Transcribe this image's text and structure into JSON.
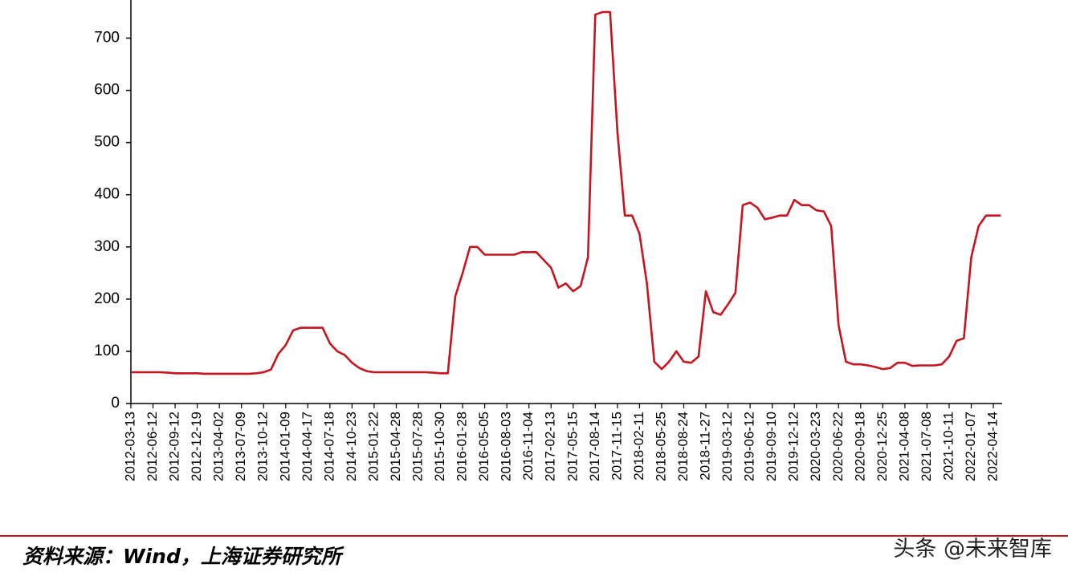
{
  "chart_data": {
    "type": "line",
    "categories": [
      "2012-03-13",
      null,
      null,
      "2012-06-12",
      null,
      null,
      "2012-09-12",
      null,
      null,
      "2012-12-19",
      null,
      null,
      "2013-04-02",
      null,
      null,
      "2013-07-09",
      null,
      null,
      "2013-10-12",
      null,
      null,
      "2014-01-09",
      null,
      null,
      "2014-04-17",
      null,
      null,
      "2014-07-18",
      null,
      null,
      "2014-10-23",
      null,
      null,
      "2015-01-22",
      null,
      null,
      "2015-04-28",
      null,
      null,
      "2015-07-28",
      null,
      null,
      "2015-10-30",
      null,
      null,
      "2016-01-28",
      null,
      null,
      "2016-05-05",
      null,
      null,
      "2016-08-03",
      null,
      null,
      "2016-11-04",
      null,
      null,
      "2017-02-13",
      null,
      null,
      "2017-05-15",
      null,
      null,
      "2017-08-14",
      null,
      null,
      "2017-11-15",
      null,
      null,
      "2018-02-11",
      null,
      null,
      "2018-05-25",
      null,
      null,
      "2018-08-24",
      null,
      null,
      "2018-11-27",
      null,
      null,
      "2019-03-12",
      null,
      null,
      "2019-06-12",
      null,
      null,
      "2019-09-10",
      null,
      null,
      "2019-12-12",
      null,
      null,
      "2020-03-23",
      null,
      null,
      "2020-06-22",
      null,
      null,
      "2020-09-18",
      null,
      null,
      "2020-12-25",
      null,
      null,
      "2021-04-08",
      null,
      null,
      "2021-07-08",
      null,
      null,
      "2021-10-11",
      null,
      null,
      "2022-01-07",
      null,
      null,
      "2022-04-14",
      null
    ],
    "series": [
      {
        "color": "#c8141e",
        "values": [
          60,
          60,
          60,
          60,
          60,
          59,
          58,
          58,
          58,
          58,
          57,
          57,
          57,
          57,
          57,
          57,
          57,
          58,
          60,
          65,
          95,
          112,
          140,
          145,
          145,
          145,
          145,
          115,
          100,
          93,
          78,
          68,
          62,
          60,
          60,
          60,
          60,
          60,
          60,
          60,
          60,
          59,
          58,
          58,
          205,
          250,
          300,
          300,
          285,
          285,
          285,
          285,
          285,
          290,
          290,
          290,
          275,
          260,
          222,
          230,
          215,
          225,
          280,
          745,
          750,
          750,
          520,
          360,
          360,
          325,
          230,
          80,
          66,
          80,
          100,
          80,
          78,
          90,
          215,
          175,
          170,
          190,
          212,
          380,
          385,
          375,
          353,
          356,
          360,
          360,
          390,
          380,
          380,
          370,
          368,
          340,
          150,
          80,
          75,
          75,
          73,
          70,
          66,
          68,
          78,
          78,
          72,
          73,
          73,
          73,
          75,
          90,
          120,
          125,
          280,
          340,
          360,
          360,
          360
        ]
      }
    ],
    "ylim": [
      0,
      773
    ],
    "yticks": [
      0,
      100,
      200,
      300,
      400,
      500,
      600,
      700
    ]
  },
  "footer": {
    "source": "资料来源：Wind，上海证券研究所",
    "watermark": "头条 @未来智库"
  }
}
